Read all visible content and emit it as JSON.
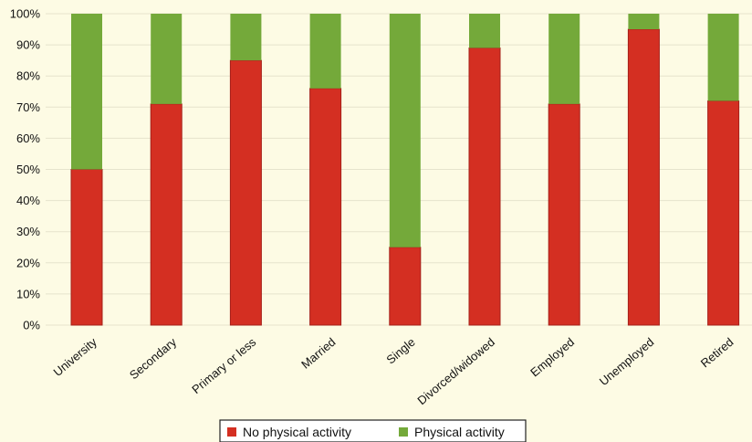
{
  "chart_data": {
    "type": "bar",
    "stacked": true,
    "categories": [
      "University",
      "Secondary",
      "Primary or less",
      "Married",
      "Single",
      "Divorced/widowed",
      "Employed",
      "Unemployed",
      "Retired"
    ],
    "series": [
      {
        "name": "No physical activity",
        "color": "#d42f22",
        "values": [
          50,
          71,
          85,
          76,
          25,
          89,
          71,
          95,
          72
        ]
      },
      {
        "name": "Physical activity",
        "color": "#74a93a",
        "values": [
          50,
          29,
          15,
          24,
          75,
          11,
          29,
          5,
          28
        ]
      }
    ],
    "y_ticks": [
      "0%",
      "10%",
      "20%",
      "30%",
      "40%",
      "50%",
      "60%",
      "70%",
      "80%",
      "90%",
      "100%"
    ],
    "ylim": [
      0,
      100
    ],
    "grid": true,
    "legend_position": "bottom-center",
    "title": "",
    "xlabel": "",
    "ylabel": ""
  }
}
